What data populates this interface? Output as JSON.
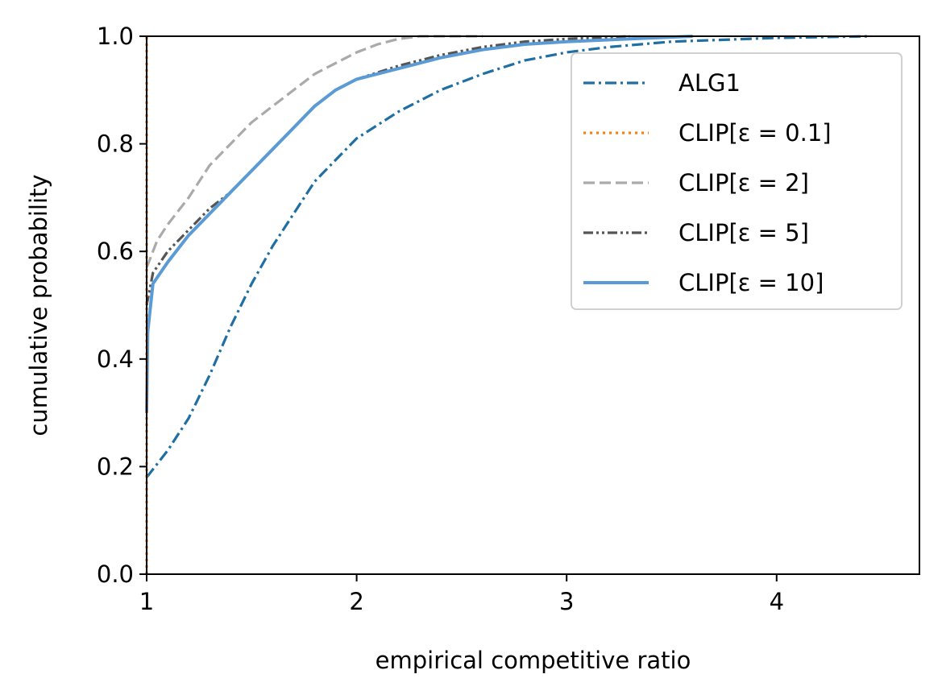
{
  "chart_data": {
    "type": "line",
    "title": "",
    "xlabel": "empirical competitive ratio",
    "ylabel": "cumulative probability",
    "xlim": [
      1,
      4.68
    ],
    "ylim": [
      0,
      1
    ],
    "xticks": [
      1,
      2,
      3,
      4
    ],
    "yticks": [
      0.0,
      0.2,
      0.4,
      0.6,
      0.8,
      1.0
    ],
    "xtick_labels": [
      "1",
      "2",
      "3",
      "4"
    ],
    "ytick_labels": [
      "0.0",
      "0.2",
      "0.4",
      "0.6",
      "0.8",
      "1.0"
    ],
    "grid": false,
    "legend_position": "upper-right",
    "series": [
      {
        "name": "ALG1",
        "color": "#1f6fa3",
        "style": "dashdot",
        "points": [
          [
            1.0,
            0.18
          ],
          [
            1.1,
            0.23
          ],
          [
            1.2,
            0.29
          ],
          [
            1.3,
            0.37
          ],
          [
            1.4,
            0.46
          ],
          [
            1.5,
            0.54
          ],
          [
            1.6,
            0.61
          ],
          [
            1.7,
            0.67
          ],
          [
            1.8,
            0.73
          ],
          [
            1.9,
            0.77
          ],
          [
            2.0,
            0.81
          ],
          [
            2.2,
            0.86
          ],
          [
            2.4,
            0.9
          ],
          [
            2.6,
            0.93
          ],
          [
            2.8,
            0.955
          ],
          [
            3.0,
            0.97
          ],
          [
            3.2,
            0.98
          ],
          [
            3.5,
            0.99
          ],
          [
            4.0,
            0.997
          ],
          [
            4.45,
            1.0
          ]
        ]
      },
      {
        "name": "CLIP[ε = 0.1]",
        "color": "#ff7f0e",
        "style": "dotted",
        "points": [
          [
            1.0,
            0.0
          ],
          [
            1.0,
            1.0
          ]
        ]
      },
      {
        "name": "CLIP[ε = 2]",
        "color": "#aaaaaa",
        "style": "dashed",
        "points": [
          [
            1.0,
            0.57
          ],
          [
            1.05,
            0.62
          ],
          [
            1.1,
            0.65
          ],
          [
            1.2,
            0.7
          ],
          [
            1.3,
            0.76
          ],
          [
            1.4,
            0.8
          ],
          [
            1.5,
            0.84
          ],
          [
            1.6,
            0.87
          ],
          [
            1.7,
            0.9
          ],
          [
            1.8,
            0.93
          ],
          [
            1.9,
            0.95
          ],
          [
            2.0,
            0.97
          ],
          [
            2.1,
            0.985
          ],
          [
            2.2,
            0.995
          ],
          [
            2.3,
            1.0
          ],
          [
            2.6,
            1.0
          ]
        ]
      },
      {
        "name": "CLIP[ε = 5]",
        "color": "#555555",
        "style": "dashdotdot",
        "points": [
          [
            1.0,
            0.5
          ],
          [
            1.03,
            0.56
          ],
          [
            1.1,
            0.6
          ],
          [
            1.2,
            0.64
          ],
          [
            1.3,
            0.68
          ],
          [
            1.4,
            0.71
          ],
          [
            1.5,
            0.75
          ],
          [
            1.6,
            0.79
          ],
          [
            1.7,
            0.83
          ],
          [
            1.8,
            0.87
          ],
          [
            1.9,
            0.9
          ],
          [
            2.0,
            0.92
          ],
          [
            2.2,
            0.945
          ],
          [
            2.4,
            0.965
          ],
          [
            2.6,
            0.98
          ],
          [
            2.8,
            0.99
          ],
          [
            3.0,
            0.995
          ],
          [
            3.3,
            1.0
          ]
        ]
      },
      {
        "name": "CLIP[ε = 10]",
        "color": "#5b9bd5",
        "style": "solid",
        "points": [
          [
            1.0,
            0.3
          ],
          [
            1.005,
            0.45
          ],
          [
            1.03,
            0.54
          ],
          [
            1.1,
            0.58
          ],
          [
            1.2,
            0.63
          ],
          [
            1.3,
            0.67
          ],
          [
            1.4,
            0.71
          ],
          [
            1.5,
            0.75
          ],
          [
            1.6,
            0.79
          ],
          [
            1.7,
            0.83
          ],
          [
            1.8,
            0.87
          ],
          [
            1.9,
            0.9
          ],
          [
            2.0,
            0.92
          ],
          [
            2.2,
            0.94
          ],
          [
            2.4,
            0.96
          ],
          [
            2.6,
            0.975
          ],
          [
            2.8,
            0.985
          ],
          [
            3.0,
            0.99
          ],
          [
            3.3,
            0.995
          ],
          [
            3.6,
            1.0
          ]
        ]
      }
    ]
  }
}
